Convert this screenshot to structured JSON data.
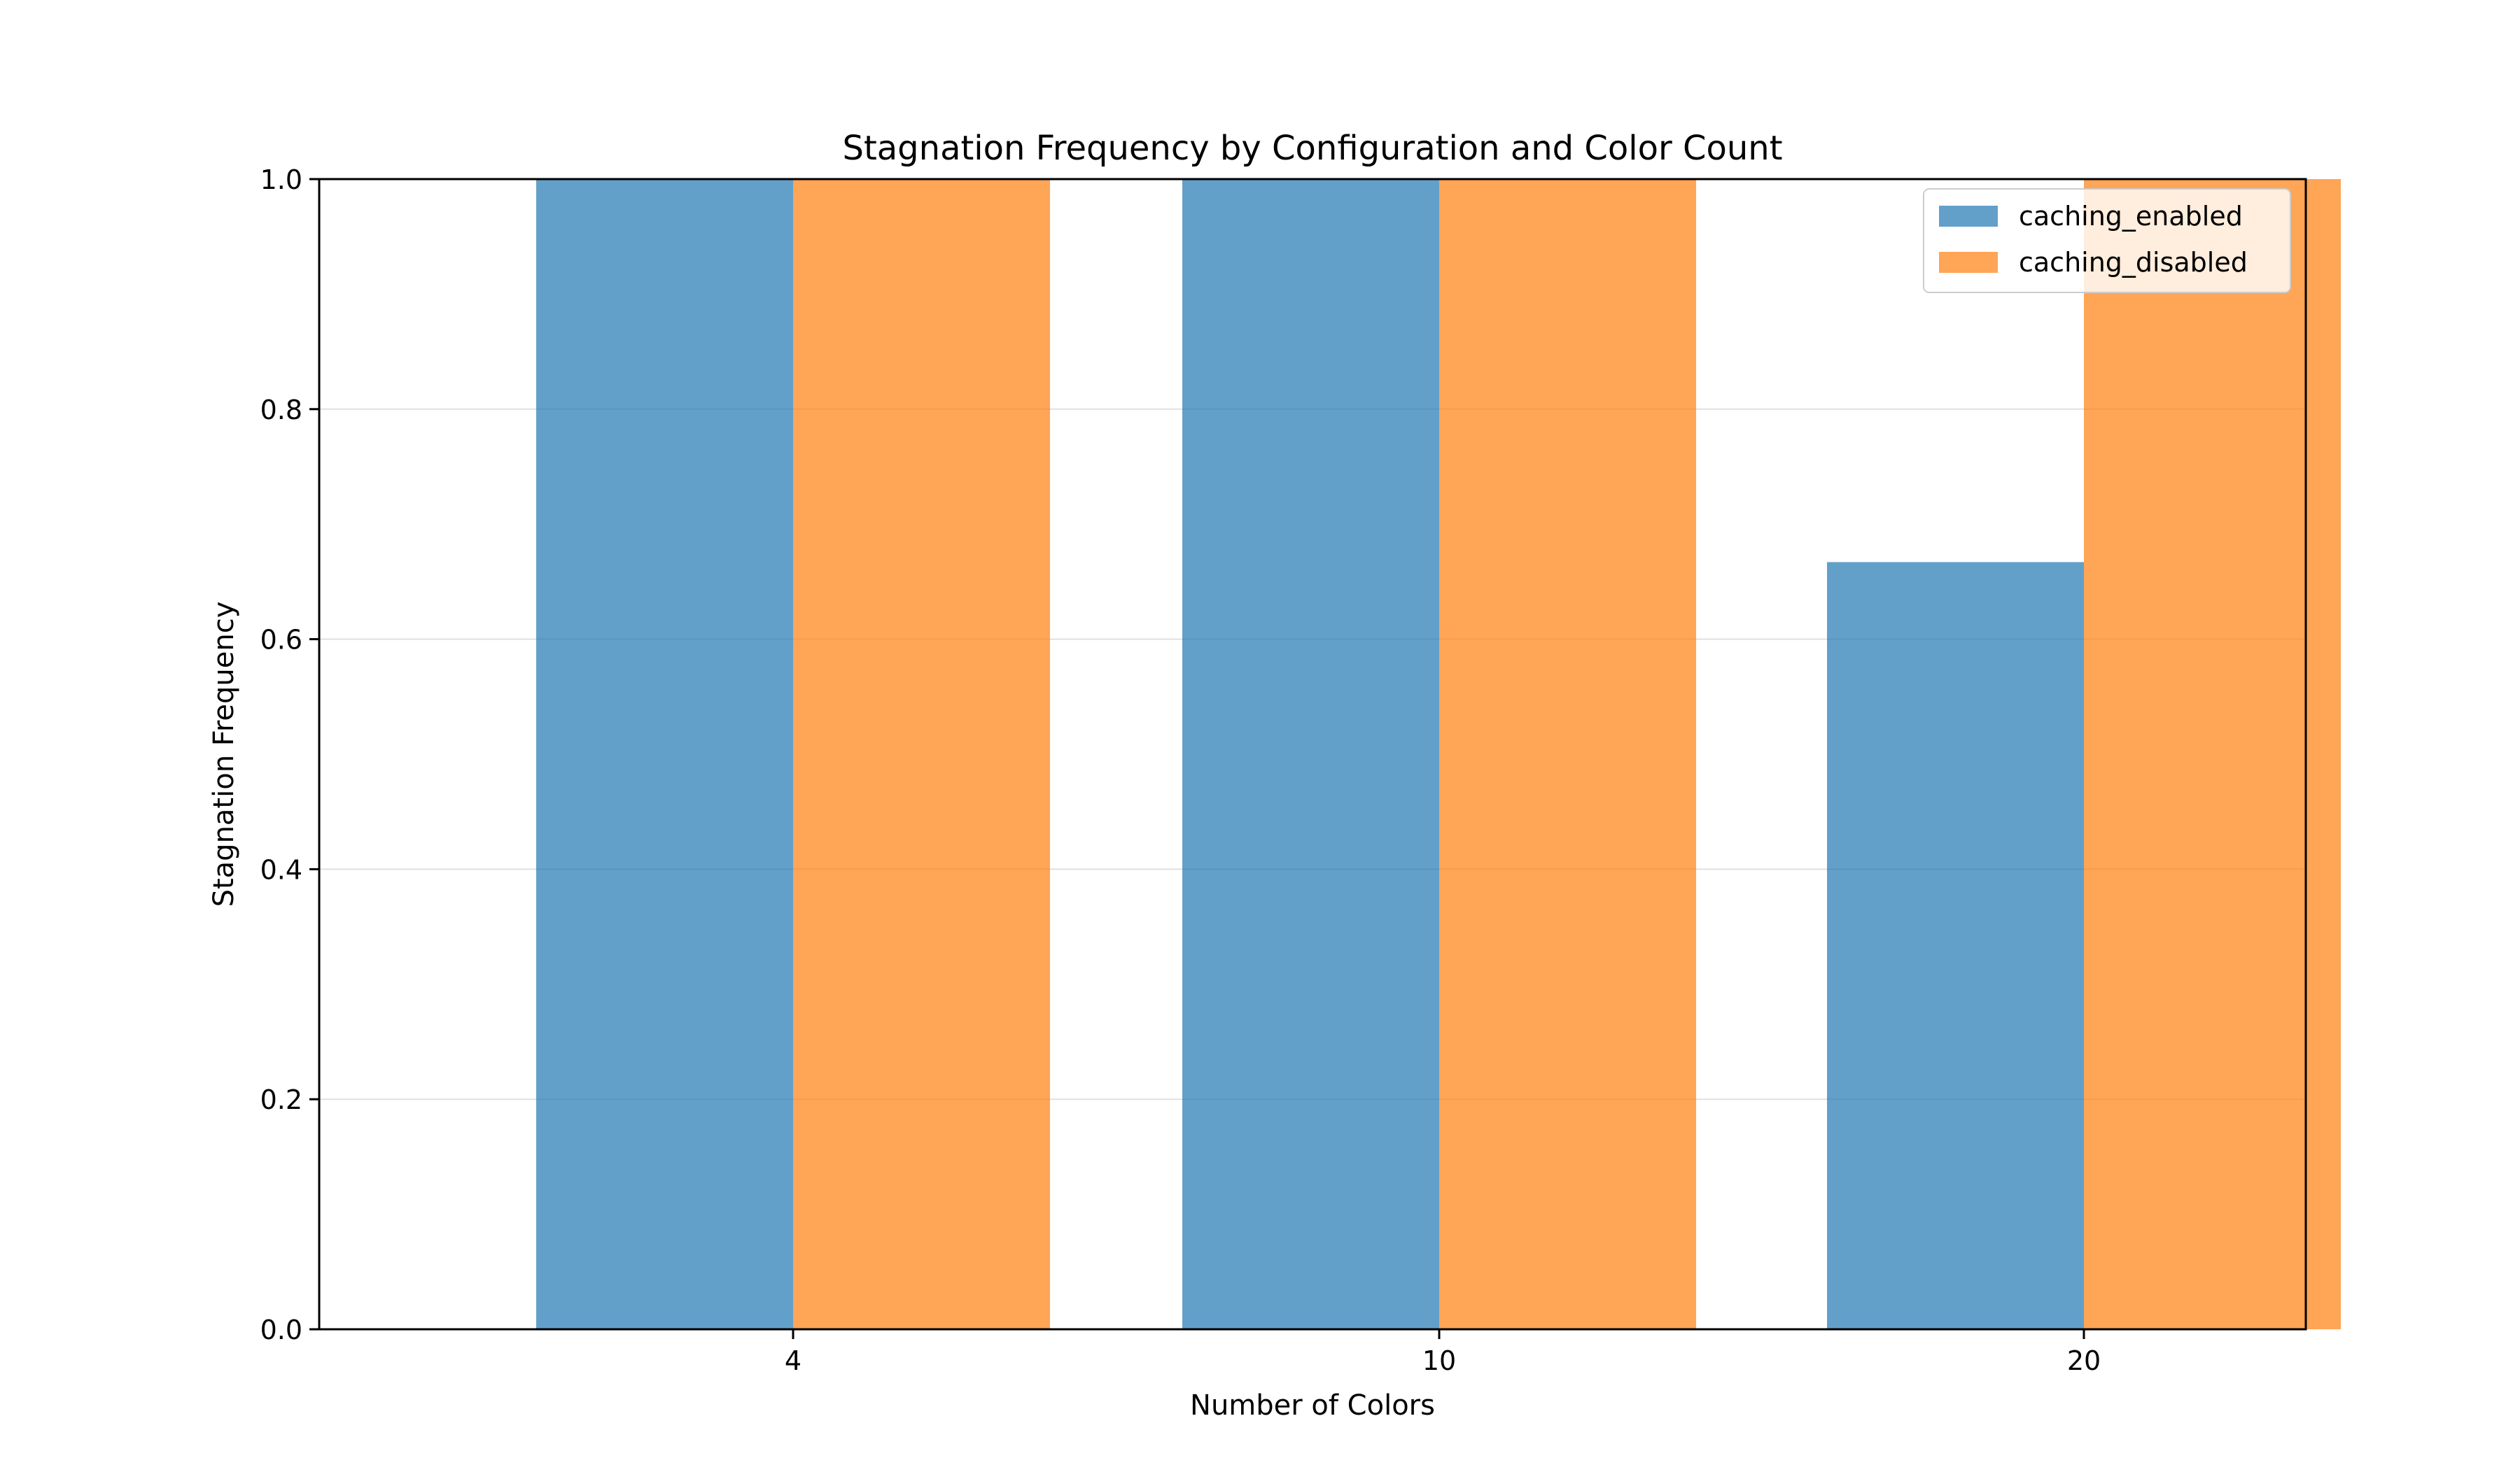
{
  "chart_data": {
    "type": "bar",
    "title": "Stagnation Frequency by Configuration and Color Count",
    "xlabel": "Number of Colors",
    "ylabel": "Stagnation Frequency",
    "categories": [
      "4",
      "10",
      "20"
    ],
    "ylim": [
      0,
      1
    ],
    "yticks": [
      "0.0",
      "0.2",
      "0.4",
      "0.6",
      "0.8",
      "1.0"
    ],
    "grid": "y",
    "legend_position": "top-right",
    "series": [
      {
        "name": "caching_enabled",
        "color": "#1f77b4",
        "values": [
          1.0,
          1.0,
          0.667
        ]
      },
      {
        "name": "caching_disabled",
        "color": "#ff7f0e",
        "values": [
          1.0,
          1.0,
          1.0
        ]
      }
    ]
  }
}
